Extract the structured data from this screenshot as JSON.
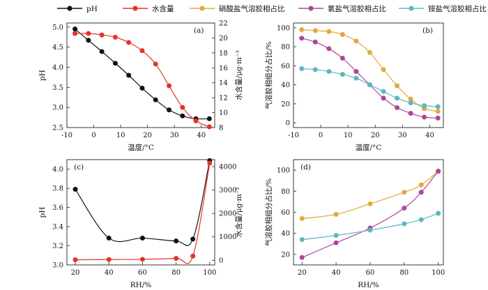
{
  "legend": [
    {
      "label": "pH",
      "color": "#111111"
    },
    {
      "label": "水含量",
      "color": "#e8312a"
    },
    {
      "label": "硝酸盐气溶胶相占比",
      "color": "#e3a93a"
    },
    {
      "label": "氯盐气溶胶相占比",
      "color": "#b0449a"
    },
    {
      "label": "铵盐气溶胶相占比",
      "color": "#5bb7c6"
    }
  ],
  "chart_data": [
    {
      "panel": "(a)",
      "type": "line",
      "xlabel": "温度/°C",
      "ylabel": "pH",
      "y2label": "水含量/μg·m⁻³",
      "xlim": [
        -10,
        45
      ],
      "ylim": [
        2.5,
        5.1
      ],
      "y2lim": [
        8,
        22
      ],
      "xticks": [
        -10,
        0,
        10,
        20,
        30,
        40
      ],
      "yticks": [
        2.5,
        3.0,
        3.5,
        4.0,
        4.5,
        5.0
      ],
      "y2ticks": [
        8,
        10,
        12,
        14,
        16,
        18,
        20,
        22
      ],
      "x": [
        -7,
        -2,
        3,
        8,
        13,
        18,
        23,
        28,
        33,
        38,
        43
      ],
      "series": [
        {
          "name": "pH",
          "axis": "left",
          "values": [
            4.95,
            4.67,
            4.39,
            4.1,
            3.8,
            3.48,
            3.19,
            2.94,
            2.79,
            2.72,
            2.72
          ]
        },
        {
          "name": "水含量",
          "axis": "right",
          "values": [
            20.6,
            20.6,
            20.4,
            20.1,
            19.4,
            18.3,
            16.5,
            13.6,
            10.7,
            8.9,
            8.1
          ]
        }
      ]
    },
    {
      "panel": "(b)",
      "type": "line",
      "xlabel": "温度/°C",
      "ylabel": "气溶胶相组分占比/%",
      "xlim": [
        -10,
        45
      ],
      "ylim": [
        -5,
        105
      ],
      "xticks": [
        -10,
        0,
        10,
        20,
        30,
        40
      ],
      "yticks": [
        0,
        20,
        40,
        60,
        80,
        100
      ],
      "x": [
        -7,
        -2,
        3,
        8,
        13,
        18,
        23,
        28,
        33,
        38,
        43
      ],
      "series": [
        {
          "name": "硝酸盐气溶胶相占比",
          "values": [
            98,
            97,
            96,
            93,
            86,
            74,
            56,
            39,
            25,
            15,
            12
          ]
        },
        {
          "name": "氯盐气溶胶相占比",
          "values": [
            89,
            85,
            78,
            68,
            54,
            40,
            26,
            16,
            10,
            6,
            5
          ]
        },
        {
          "name": "铵盐气溶胶相占比",
          "values": [
            57,
            56,
            54,
            51,
            47,
            40,
            33,
            26,
            21,
            18,
            17
          ]
        }
      ]
    },
    {
      "panel": "(c)",
      "type": "line",
      "xlabel": "RH/%",
      "ylabel": "pH",
      "y2label": "水含量/μg·m⁻³",
      "xlim": [
        15,
        103
      ],
      "ylim": [
        3.0,
        4.1
      ],
      "y2lim": [
        -200,
        4300
      ],
      "xticks": [
        20,
        40,
        60,
        80,
        100
      ],
      "yticks": [
        3.0,
        3.2,
        3.4,
        3.6,
        3.8,
        4.0
      ],
      "y2ticks": [
        0,
        1000,
        2000,
        3000,
        4000
      ],
      "x": [
        20,
        40,
        60,
        80,
        90,
        100
      ],
      "series": [
        {
          "name": "pH",
          "axis": "left",
          "values": [
            3.79,
            3.28,
            3.28,
            3.25,
            3.27,
            4.09
          ]
        },
        {
          "name": "水含量",
          "axis": "right",
          "values": [
            20,
            30,
            40,
            80,
            180,
            4150
          ]
        }
      ]
    },
    {
      "panel": "(d)",
      "type": "line",
      "xlabel": "RH/%",
      "ylabel": "气溶胶相组分占比/%",
      "xlim": [
        15,
        103
      ],
      "ylim": [
        10,
        110
      ],
      "xticks": [
        20,
        40,
        60,
        80,
        100
      ],
      "yticks": [
        20,
        40,
        60,
        80,
        100
      ],
      "x": [
        20,
        40,
        60,
        80,
        90,
        100
      ],
      "series": [
        {
          "name": "硝酸盐气溶胶相占比",
          "values": [
            54,
            58,
            68,
            79,
            86,
            99
          ]
        },
        {
          "name": "氯盐气溶胶相占比",
          "values": [
            17,
            31,
            45,
            64,
            79,
            99
          ]
        },
        {
          "name": "铵盐气溶胶相占比",
          "values": [
            34,
            38,
            43,
            49,
            53,
            59
          ]
        }
      ]
    }
  ]
}
